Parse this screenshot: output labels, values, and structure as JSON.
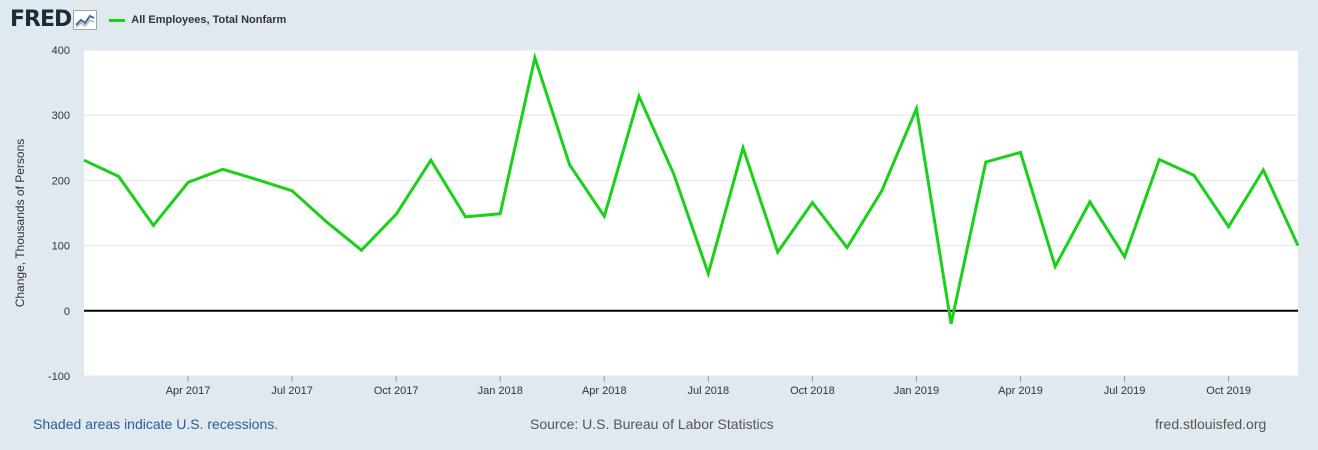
{
  "header": {
    "logo_text": "FRED",
    "series_label": "All Employees, Total Nonfarm"
  },
  "footer": {
    "recession_note": "Shaded areas indicate U.S. recessions.",
    "source": "Source: U.S. Bureau of Labor Statistics",
    "url": "fred.stlouisfed.org"
  },
  "colors": {
    "line": "#19d119",
    "zero_line": "#000000",
    "background": "#e1e9f0",
    "plot_background": "#ffffff",
    "grid": "#e6e6e6"
  },
  "icons": [
    "fred-chart-icon"
  ],
  "chart_data": {
    "type": "line",
    "title": "",
    "xlabel": "",
    "ylabel": "Change, Thousands of Persons",
    "ylim": [
      -100,
      400
    ],
    "yticks": [
      -100,
      0,
      100,
      200,
      300,
      400
    ],
    "xlim": [
      "2017-01",
      "2019-12"
    ],
    "xticks": [
      {
        "date": "2017-04",
        "label": "Apr 2017"
      },
      {
        "date": "2017-07",
        "label": "Jul 2017"
      },
      {
        "date": "2017-10",
        "label": "Oct 2017"
      },
      {
        "date": "2018-01",
        "label": "Jan 2018"
      },
      {
        "date": "2018-04",
        "label": "Apr 2018"
      },
      {
        "date": "2018-07",
        "label": "Jul 2018"
      },
      {
        "date": "2018-10",
        "label": "Oct 2018"
      },
      {
        "date": "2019-01",
        "label": "Jan 2019"
      },
      {
        "date": "2019-04",
        "label": "Apr 2019"
      },
      {
        "date": "2019-07",
        "label": "Jul 2019"
      },
      {
        "date": "2019-10",
        "label": "Oct 2019"
      }
    ],
    "grid": true,
    "legend": "top-left",
    "series": [
      {
        "name": "All Employees, Total Nonfarm",
        "color": "#19d119",
        "x": [
          "2017-01",
          "2017-02",
          "2017-03",
          "2017-04",
          "2017-05",
          "2017-06",
          "2017-07",
          "2017-08",
          "2017-09",
          "2017-10",
          "2017-11",
          "2017-12",
          "2018-01",
          "2018-02",
          "2018-03",
          "2018-04",
          "2018-05",
          "2018-06",
          "2018-07",
          "2018-08",
          "2018-09",
          "2018-10",
          "2018-11",
          "2018-12",
          "2019-01",
          "2019-02",
          "2019-03",
          "2019-04",
          "2019-05",
          "2019-06",
          "2019-07",
          "2019-08",
          "2019-09",
          "2019-10",
          "2019-11",
          "2019-12"
        ],
        "y": [
          231,
          206,
          131,
          197,
          217,
          201,
          184,
          136,
          93,
          148,
          231,
          144,
          149,
          388,
          224,
          145,
          329,
          210,
          57,
          250,
          90,
          166,
          97,
          184,
          310,
          -20,
          228,
          243,
          68,
          167,
          83,
          232,
          208,
          129,
          216,
          100
        ]
      }
    ]
  }
}
